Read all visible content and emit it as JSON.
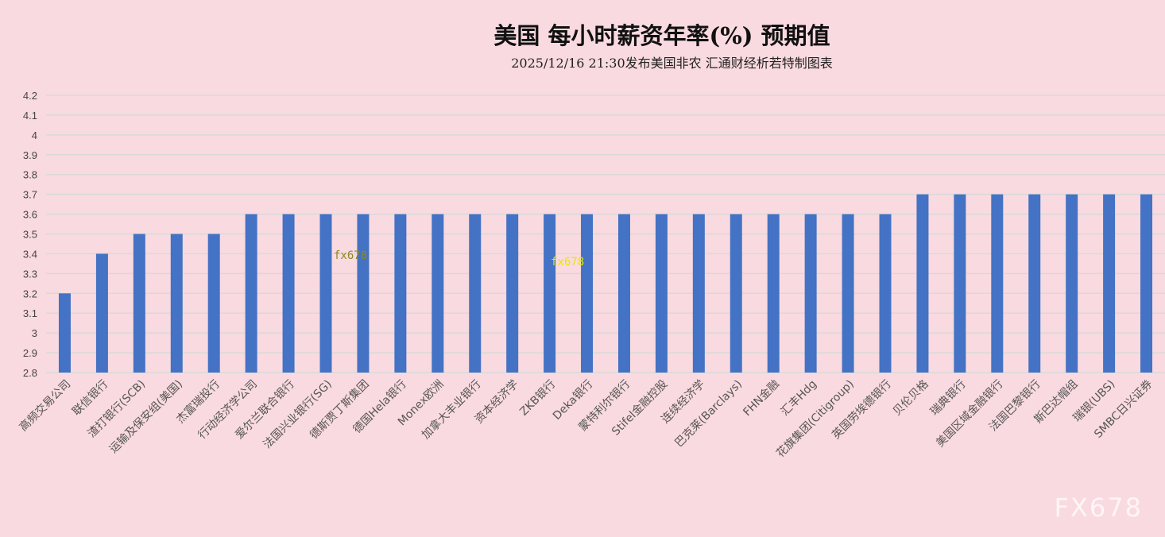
{
  "chart_data": {
    "type": "bar",
    "title": "美国  每小时薪资年率(%)  预期值",
    "subtitle": "2025/12/16 21:30发布美国非农  汇通财经析若特制图表",
    "categories": [
      "高频交易公司",
      "联信银行",
      "渣打银行(SCB)",
      "运输及保安组(美国)",
      "杰富瑞投行",
      "行动经济学公司",
      "爱尔兰联合银行",
      "法国兴业银行(SG)",
      "德斯贾丁斯集团",
      "德国Hela银行",
      "Monex欧洲",
      "加拿大丰业银行",
      "资本经济学",
      "ZKB银行",
      "Deka银行",
      "蒙特利尔银行",
      "Stifel金融控股",
      "连续经济学",
      "巴克莱(Barclays)",
      "FHN金融",
      "汇丰Hdg",
      "花旗集团(Citigroup)",
      "英国劳埃德银行",
      "贝伦贝格",
      "瑞典银行",
      "美国区域金融银行",
      "法国巴黎银行",
      "斯巴达帽组",
      "瑞银(UBS)",
      "SMBC日兴证券"
    ],
    "values": [
      3.2,
      3.4,
      3.5,
      3.5,
      3.5,
      3.6,
      3.6,
      3.6,
      3.6,
      3.6,
      3.6,
      3.6,
      3.6,
      3.6,
      3.6,
      3.6,
      3.6,
      3.6,
      3.6,
      3.6,
      3.6,
      3.6,
      3.6,
      3.7,
      3.7,
      3.7,
      3.7,
      3.7,
      3.7,
      3.7
    ],
    "ylim": [
      2.8,
      4.2
    ],
    "yticks": [
      "2.8",
      "2.9",
      "3",
      "3.1",
      "3.2",
      "3.3",
      "3.4",
      "3.5",
      "3.6",
      "3.7",
      "3.8",
      "3.9",
      "4",
      "4.1",
      "4.2"
    ],
    "grid": true,
    "legend": "none",
    "colors": {
      "bar": "#4472c4",
      "grid": "#d9d9d9",
      "background": "#f9dae0"
    }
  },
  "watermarks": {
    "small1": "fx678",
    "small2": "fx678",
    "logo": "FX678"
  }
}
